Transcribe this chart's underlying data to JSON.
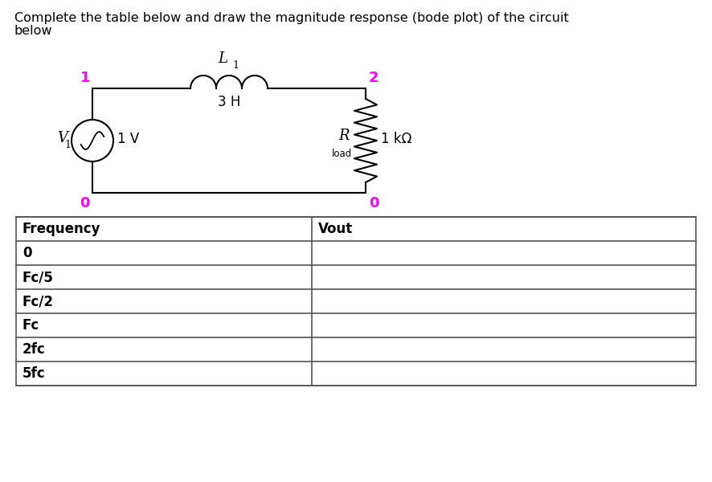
{
  "title_line1": "Complete the table below and draw the magnitude response (bode plot) of the circuit",
  "title_line2": "below",
  "title_fontsize": 11.5,
  "title_color": "#000000",
  "background_color": "#ffffff",
  "circuit": {
    "node1_label": "1",
    "node2_label": "2",
    "node0_left_label": "0",
    "node0_right_label": "0",
    "inductor_label": "L",
    "inductor_subscript": "1",
    "inductor_value": "3 H",
    "source_label_main": "V",
    "source_label_sub": "1",
    "source_value": "1 V",
    "resistor_label_main": "R",
    "resistor_label_sub": "load",
    "resistor_value": "1 kΩ",
    "magenta": "#ff00ff",
    "black": "#000000",
    "lw": 1.5
  },
  "table": {
    "headers": [
      "Frequency",
      "Vout"
    ],
    "rows": [
      "0",
      "Fc/5",
      "Fc/2",
      "Fc",
      "2fc",
      "5fc"
    ],
    "col_split": 0.435
  }
}
